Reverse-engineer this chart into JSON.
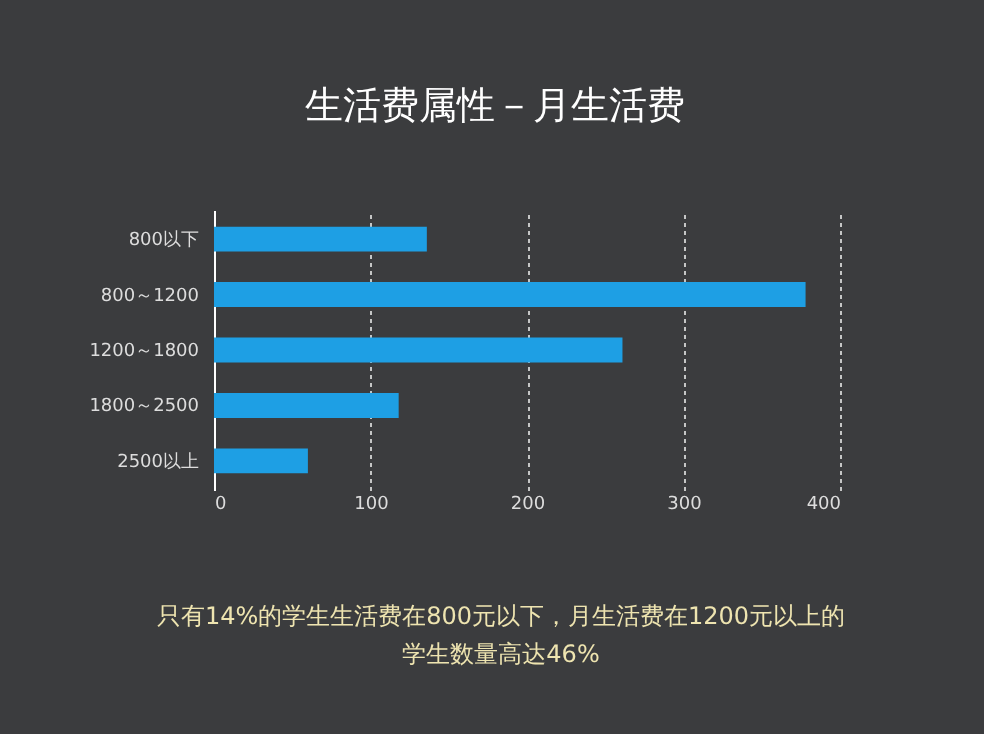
{
  "chart_data": {
    "type": "bar",
    "orientation": "horizontal",
    "title": "生活费属性－月生活费",
    "categories": [
      "800以下",
      "800～1200",
      "1200～1800",
      "1800～2500",
      "2500以上"
    ],
    "values": [
      136,
      378,
      261,
      118,
      60
    ],
    "color": "#1e9fe4",
    "xlim": [
      0,
      400
    ],
    "xticks": [
      0,
      100,
      200,
      300,
      400
    ],
    "grid": "x",
    "annotations": [
      "只有14%的学生生活费在800元以下，月生活费在1200元以上的学生数量高达46%"
    ]
  }
}
